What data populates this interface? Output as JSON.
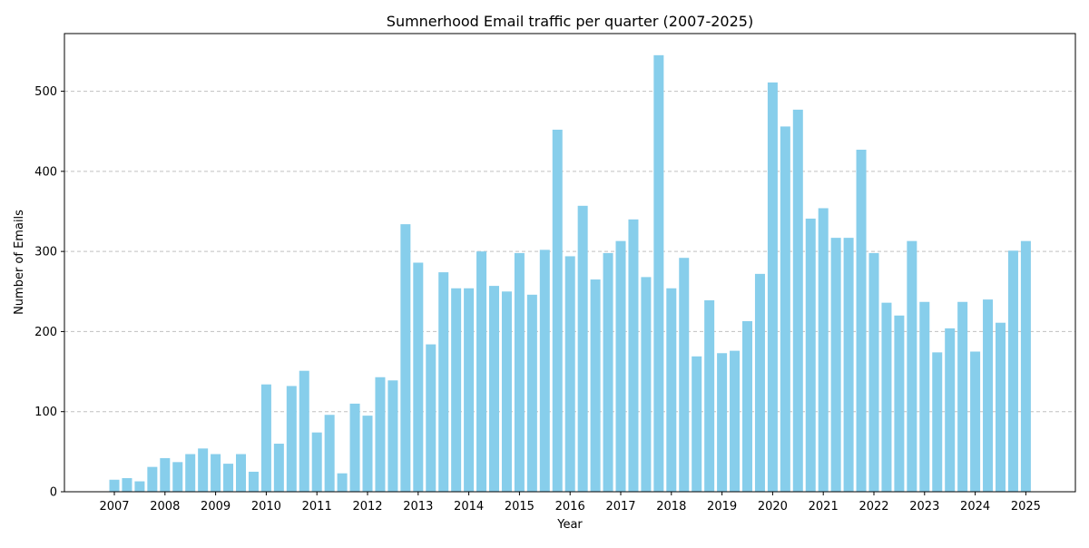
{
  "chart_data": {
    "type": "bar",
    "title": "Sumnerhood Email traffic per quarter (2007-2025)",
    "xlabel": "Year",
    "ylabel": "Number of Emails",
    "bar_color": "#87ceeb",
    "grid": "y-dashed",
    "ylim": [
      0,
      572
    ],
    "yticks": [
      0,
      100,
      200,
      300,
      400,
      500
    ],
    "xticks": [
      "2007",
      "2008",
      "2009",
      "2010",
      "2011",
      "2012",
      "2013",
      "2014",
      "2015",
      "2016",
      "2017",
      "2018",
      "2019",
      "2020",
      "2021",
      "2022",
      "2023",
      "2024",
      "2025"
    ],
    "categories": [
      "2007 Q1",
      "2007 Q2",
      "2007 Q3",
      "2007 Q4",
      "2008 Q1",
      "2008 Q2",
      "2008 Q3",
      "2008 Q4",
      "2009 Q1",
      "2009 Q2",
      "2009 Q3",
      "2009 Q4",
      "2010 Q1",
      "2010 Q2",
      "2010 Q3",
      "2010 Q4",
      "2011 Q1",
      "2011 Q2",
      "2011 Q3",
      "2011 Q4",
      "2012 Q1",
      "2012 Q2",
      "2012 Q3",
      "2012 Q4",
      "2013 Q1",
      "2013 Q2",
      "2013 Q3",
      "2013 Q4",
      "2014 Q1",
      "2014 Q2",
      "2014 Q3",
      "2014 Q4",
      "2015 Q1",
      "2015 Q2",
      "2015 Q3",
      "2015 Q4",
      "2016 Q1",
      "2016 Q2",
      "2016 Q3",
      "2016 Q4",
      "2017 Q1",
      "2017 Q2",
      "2017 Q3",
      "2017 Q4",
      "2018 Q1",
      "2018 Q2",
      "2018 Q3",
      "2018 Q4",
      "2019 Q1",
      "2019 Q2",
      "2019 Q3",
      "2019 Q4",
      "2020 Q1",
      "2020 Q2",
      "2020 Q3",
      "2020 Q4",
      "2021 Q1",
      "2021 Q2",
      "2021 Q3",
      "2021 Q4",
      "2022 Q1",
      "2022 Q2",
      "2022 Q3",
      "2022 Q4",
      "2023 Q1",
      "2023 Q2",
      "2023 Q3",
      "2023 Q4",
      "2024 Q1",
      "2024 Q2",
      "2024 Q3",
      "2024 Q4",
      "2025 Q1"
    ],
    "values": [
      15,
      17,
      13,
      31,
      42,
      37,
      47,
      54,
      47,
      35,
      47,
      25,
      134,
      60,
      132,
      151,
      74,
      96,
      23,
      110,
      95,
      143,
      139,
      334,
      286,
      184,
      274,
      254,
      254,
      300,
      257,
      250,
      298,
      246,
      302,
      452,
      294,
      357,
      265,
      298,
      313,
      340,
      268,
      545,
      254,
      292,
      169,
      239,
      173,
      176,
      213,
      272,
      511,
      456,
      477,
      341,
      354,
      317,
      317,
      427,
      298,
      236,
      220,
      313,
      237,
      174,
      204,
      237,
      175,
      240,
      211,
      301,
      313
    ]
  }
}
